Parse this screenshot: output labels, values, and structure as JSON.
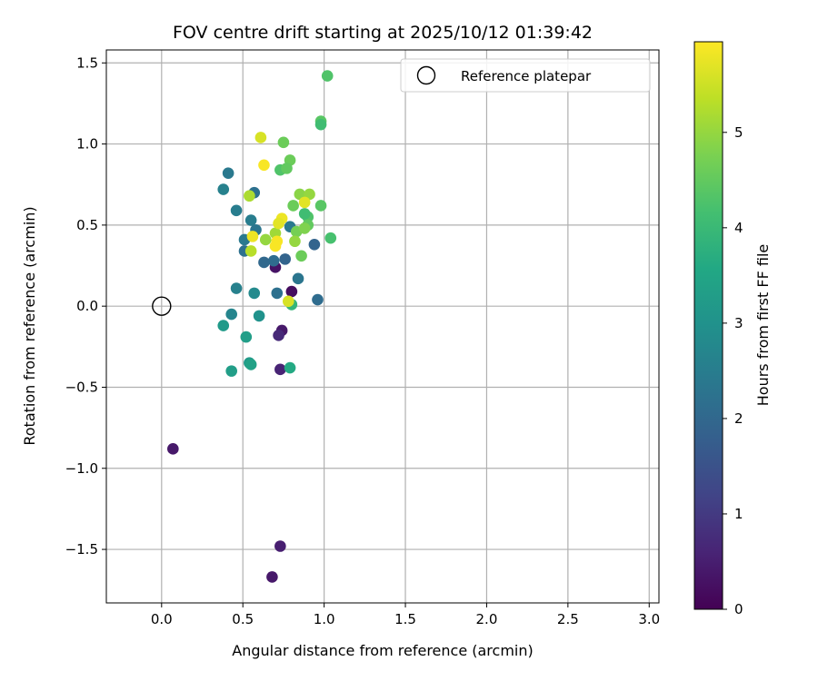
{
  "chart_data": {
    "type": "scatter",
    "title": "FOV centre drift starting at 2025/10/12 01:39:42",
    "xlabel": "Angular distance from reference (arcmin)",
    "ylabel": "Rotation from reference (arcmin)",
    "xlim": [
      -0.34,
      3.06
    ],
    "ylim": [
      -1.83,
      1.58
    ],
    "xticks": [
      0.0,
      0.5,
      1.0,
      1.5,
      2.0,
      2.5,
      3.0
    ],
    "xtick_labels": [
      "0.0",
      "0.5",
      "1.0",
      "1.5",
      "2.0",
      "2.5",
      "3.0"
    ],
    "yticks": [
      -1.5,
      -1.0,
      -0.5,
      0.0,
      0.5,
      1.0,
      1.5
    ],
    "ytick_labels": [
      "−1.5",
      "−1.0",
      "−0.5",
      "0.0",
      "0.5",
      "1.0",
      "1.5"
    ],
    "grid": true,
    "legend": {
      "placement": "top-right",
      "entries": [
        "Reference platepar"
      ]
    },
    "reference_point": {
      "x": 0.0,
      "y": 0.0
    },
    "colorbar": {
      "label": "Hours from first FF file",
      "colormap": "viridis",
      "range": [
        0,
        5.95
      ],
      "ticks": [
        0,
        1,
        2,
        3,
        4,
        5
      ],
      "tick_labels": [
        "0",
        "1",
        "2",
        "3",
        "4",
        "5"
      ]
    },
    "points": [
      {
        "x": 0.07,
        "y": -0.88,
        "h": 0.4
      },
      {
        "x": 0.68,
        "y": -1.67,
        "h": 0.4
      },
      {
        "x": 0.73,
        "y": -1.48,
        "h": 0.5
      },
      {
        "x": 0.74,
        "y": -0.15,
        "h": 0.4
      },
      {
        "x": 0.72,
        "y": -0.18,
        "h": 0.7
      },
      {
        "x": 0.73,
        "y": -0.39,
        "h": 0.6
      },
      {
        "x": 0.7,
        "y": 0.24,
        "h": 0.3
      },
      {
        "x": 0.8,
        "y": 0.09,
        "h": 0.2
      },
      {
        "x": 0.94,
        "y": 0.38,
        "h": 1.9
      },
      {
        "x": 0.96,
        "y": 0.04,
        "h": 2.1
      },
      {
        "x": 0.76,
        "y": 0.29,
        "h": 1.9
      },
      {
        "x": 0.69,
        "y": 0.28,
        "h": 2.1
      },
      {
        "x": 0.63,
        "y": 0.27,
        "h": 2.0
      },
      {
        "x": 0.71,
        "y": 0.08,
        "h": 2.2
      },
      {
        "x": 0.84,
        "y": 0.17,
        "h": 2.3
      },
      {
        "x": 0.57,
        "y": 0.7,
        "h": 2.2
      },
      {
        "x": 0.41,
        "y": 0.82,
        "h": 2.4
      },
      {
        "x": 0.38,
        "y": 0.72,
        "h": 2.6
      },
      {
        "x": 0.46,
        "y": 0.59,
        "h": 2.5
      },
      {
        "x": 0.55,
        "y": 0.53,
        "h": 2.5
      },
      {
        "x": 0.51,
        "y": 0.41,
        "h": 2.4
      },
      {
        "x": 0.51,
        "y": 0.34,
        "h": 2.2
      },
      {
        "x": 0.58,
        "y": 0.47,
        "h": 2.3
      },
      {
        "x": 0.79,
        "y": 0.49,
        "h": 2.4
      },
      {
        "x": 0.46,
        "y": 0.11,
        "h": 2.6
      },
      {
        "x": 0.57,
        "y": 0.08,
        "h": 2.8
      },
      {
        "x": 0.43,
        "y": -0.05,
        "h": 2.7
      },
      {
        "x": 0.6,
        "y": -0.06,
        "h": 3.0
      },
      {
        "x": 0.38,
        "y": -0.12,
        "h": 3.2
      },
      {
        "x": 0.52,
        "y": -0.19,
        "h": 3.3
      },
      {
        "x": 0.54,
        "y": -0.35,
        "h": 3.2
      },
      {
        "x": 0.55,
        "y": -0.36,
        "h": 3.4
      },
      {
        "x": 0.43,
        "y": -0.4,
        "h": 3.3
      },
      {
        "x": 0.79,
        "y": -0.38,
        "h": 3.6
      },
      {
        "x": 0.8,
        "y": 0.01,
        "h": 3.9
      },
      {
        "x": 1.02,
        "y": 1.42,
        "h": 4.3
      },
      {
        "x": 0.98,
        "y": 1.14,
        "h": 4.4
      },
      {
        "x": 0.98,
        "y": 1.12,
        "h": 4.1
      },
      {
        "x": 0.75,
        "y": 1.01,
        "h": 4.6
      },
      {
        "x": 0.79,
        "y": 0.9,
        "h": 4.6
      },
      {
        "x": 0.73,
        "y": 0.84,
        "h": 4.3
      },
      {
        "x": 0.77,
        "y": 0.85,
        "h": 4.5
      },
      {
        "x": 0.98,
        "y": 0.62,
        "h": 4.4
      },
      {
        "x": 1.04,
        "y": 0.42,
        "h": 4.2
      },
      {
        "x": 0.9,
        "y": 0.55,
        "h": 4.3
      },
      {
        "x": 0.88,
        "y": 0.57,
        "h": 4.1
      },
      {
        "x": 0.81,
        "y": 0.62,
        "h": 4.6
      },
      {
        "x": 0.9,
        "y": 0.5,
        "h": 4.5
      },
      {
        "x": 0.86,
        "y": 0.31,
        "h": 4.6
      },
      {
        "x": 0.83,
        "y": 0.46,
        "h": 4.7
      },
      {
        "x": 0.88,
        "y": 0.48,
        "h": 4.8
      },
      {
        "x": 0.85,
        "y": 0.69,
        "h": 4.9
      },
      {
        "x": 0.91,
        "y": 0.69,
        "h": 5.0
      },
      {
        "x": 0.82,
        "y": 0.4,
        "h": 5.0
      },
      {
        "x": 0.7,
        "y": 0.45,
        "h": 5.1
      },
      {
        "x": 0.64,
        "y": 0.41,
        "h": 5.0
      },
      {
        "x": 0.54,
        "y": 0.68,
        "h": 5.2
      },
      {
        "x": 0.55,
        "y": 0.34,
        "h": 5.3
      },
      {
        "x": 0.61,
        "y": 1.04,
        "h": 5.6
      },
      {
        "x": 0.63,
        "y": 0.87,
        "h": 5.9
      },
      {
        "x": 0.88,
        "y": 0.64,
        "h": 5.7
      },
      {
        "x": 0.74,
        "y": 0.54,
        "h": 5.8
      },
      {
        "x": 0.72,
        "y": 0.51,
        "h": 5.7
      },
      {
        "x": 0.56,
        "y": 0.43,
        "h": 5.8
      },
      {
        "x": 0.71,
        "y": 0.4,
        "h": 5.9
      },
      {
        "x": 0.7,
        "y": 0.37,
        "h": 5.9
      },
      {
        "x": 0.78,
        "y": 0.03,
        "h": 5.6
      }
    ]
  }
}
